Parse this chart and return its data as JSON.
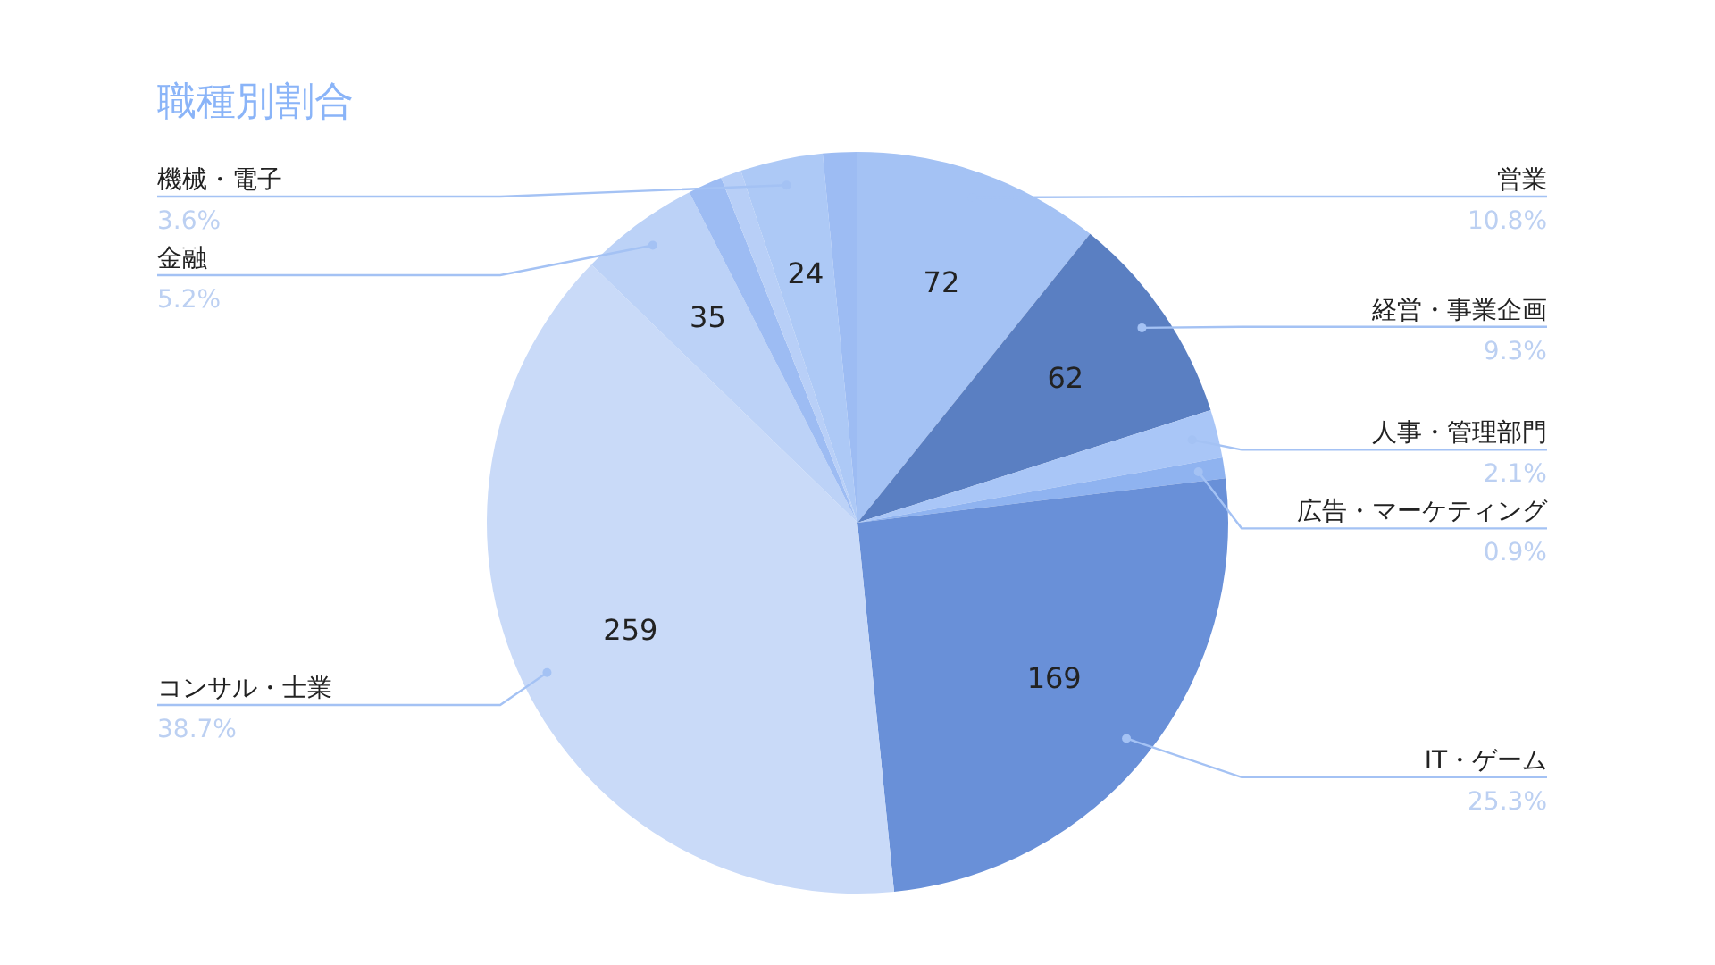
{
  "chart_data": {
    "type": "pie",
    "title": "職種別割合",
    "categories": [
      "営業",
      "経営・事業企画",
      "人事・管理部門",
      "広告・マーケティング",
      "IT・ゲーム",
      "コンサル・士業",
      "金融",
      null,
      null,
      "機械・電子",
      null
    ],
    "values": [
      72,
      62,
      14,
      6,
      169,
      259,
      35,
      10,
      6,
      24,
      10
    ],
    "colors": [
      "#a4c2f4",
      "#5a7fc2",
      "#a9c6f7",
      "#8fb3f0",
      "#6990d8",
      "#c9daf8",
      "#bcd2f7",
      "#9dbcf3",
      "#b8cff7",
      "#adc9f6",
      "#9dbcf3"
    ],
    "value_labels": [
      "72",
      "62",
      null,
      null,
      "169",
      "259",
      "35",
      null,
      null,
      "24",
      null
    ],
    "annotations": [
      "10.8%",
      "9.3%",
      "2.1%",
      "0.9%",
      "25.3%",
      "38.7%",
      "5.2%",
      "3.6%"
    ]
  }
}
